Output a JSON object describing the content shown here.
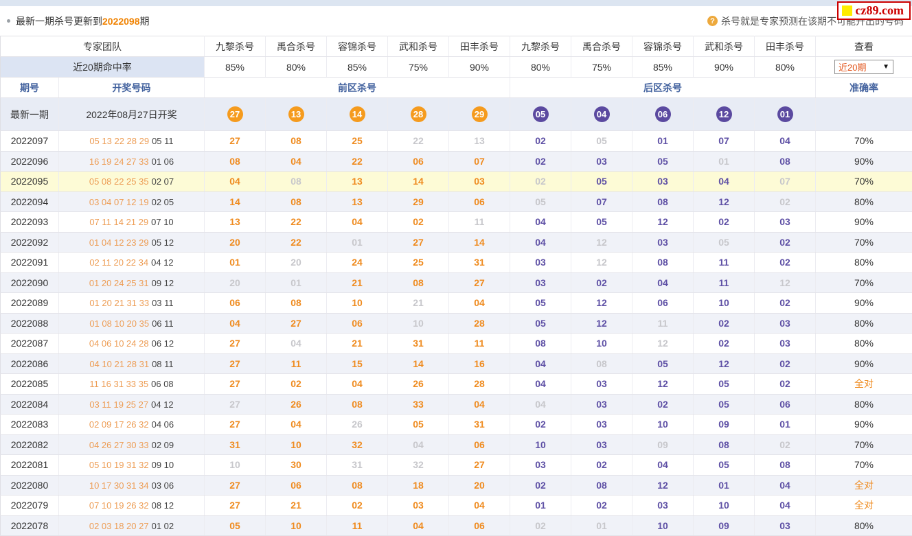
{
  "page": {
    "top_title": {
      "prefix": "最新一期杀号更新到",
      "issue": "2022098",
      "suffix": "期"
    },
    "hint": {
      "icon": "?",
      "text": "杀号就是专家预测在该期不可能开出的号码"
    },
    "logo_text": "cz89.com"
  },
  "colors": {
    "front_hit": "#ef8b1f",
    "back_hit": "#5e50a5",
    "miss": "#c7c7cb",
    "front_ball": "#f59b1e",
    "back_ball": "#5b4aa0",
    "issue_accent": "#f08200",
    "header_blue": "#44639f",
    "logo_red": "#cc0000",
    "logo_yellow": "#ffec00",
    "row_alt": "#f0f2f8",
    "row_highlight": "#fdfbd6"
  },
  "table": {
    "header": {
      "experts_label": "专家团队",
      "expert_columns": [
        "九黎杀号",
        "禹合杀号",
        "容锦杀号",
        "武和杀号",
        "田丰杀号",
        "九黎杀号",
        "禹合杀号",
        "容锦杀号",
        "武和杀号",
        "田丰杀号"
      ],
      "view_label": "查看",
      "hit_rate_label": "近20期命中率",
      "hit_rates": [
        "85%",
        "80%",
        "85%",
        "75%",
        "90%",
        "80%",
        "75%",
        "85%",
        "90%",
        "80%"
      ],
      "range_dropdown": {
        "value": "近20期",
        "arrow": "▼"
      },
      "period_label": "期号",
      "draw_label": "开奖号码",
      "front_label": "前区杀号",
      "back_label": "后区杀号",
      "accuracy_label": "准确率"
    },
    "latest": {
      "label": "最新一期",
      "date": "2022年08月27日开奖",
      "front_kills": [
        "27",
        "13",
        "14",
        "28",
        "29"
      ],
      "back_kills": [
        "05",
        "04",
        "06",
        "12",
        "01"
      ],
      "accuracy": ""
    },
    "rows": [
      {
        "period": "2022097",
        "front_draw": "05 13 22 28 29",
        "back_draw": "05 11",
        "front": [
          [
            "27",
            1
          ],
          [
            "08",
            1
          ],
          [
            "25",
            1
          ],
          [
            "22",
            0
          ],
          [
            "13",
            0
          ]
        ],
        "back": [
          [
            "02",
            1
          ],
          [
            "05",
            0
          ],
          [
            "01",
            1
          ],
          [
            "07",
            1
          ],
          [
            "04",
            1
          ]
        ],
        "accuracy": "70%",
        "highlight": false
      },
      {
        "period": "2022096",
        "front_draw": "16 19 24 27 33",
        "back_draw": "01 06",
        "front": [
          [
            "08",
            1
          ],
          [
            "04",
            1
          ],
          [
            "22",
            1
          ],
          [
            "06",
            1
          ],
          [
            "07",
            1
          ]
        ],
        "back": [
          [
            "02",
            1
          ],
          [
            "03",
            1
          ],
          [
            "05",
            1
          ],
          [
            "01",
            0
          ],
          [
            "08",
            1
          ]
        ],
        "accuracy": "90%",
        "highlight": false
      },
      {
        "period": "2022095",
        "front_draw": "05 08 22 25 35",
        "back_draw": "02 07",
        "front": [
          [
            "04",
            1
          ],
          [
            "08",
            0
          ],
          [
            "13",
            1
          ],
          [
            "14",
            1
          ],
          [
            "03",
            1
          ]
        ],
        "back": [
          [
            "02",
            0
          ],
          [
            "05",
            1
          ],
          [
            "03",
            1
          ],
          [
            "04",
            1
          ],
          [
            "07",
            0
          ]
        ],
        "accuracy": "70%",
        "highlight": true
      },
      {
        "period": "2022094",
        "front_draw": "03 04 07 12 19",
        "back_draw": "02 05",
        "front": [
          [
            "14",
            1
          ],
          [
            "08",
            1
          ],
          [
            "13",
            1
          ],
          [
            "29",
            1
          ],
          [
            "06",
            1
          ]
        ],
        "back": [
          [
            "05",
            0
          ],
          [
            "07",
            1
          ],
          [
            "08",
            1
          ],
          [
            "12",
            1
          ],
          [
            "02",
            0
          ]
        ],
        "accuracy": "80%",
        "highlight": false
      },
      {
        "period": "2022093",
        "front_draw": "07 11 14 21 29",
        "back_draw": "07 10",
        "front": [
          [
            "13",
            1
          ],
          [
            "22",
            1
          ],
          [
            "04",
            1
          ],
          [
            "02",
            1
          ],
          [
            "11",
            0
          ]
        ],
        "back": [
          [
            "04",
            1
          ],
          [
            "05",
            1
          ],
          [
            "12",
            1
          ],
          [
            "02",
            1
          ],
          [
            "03",
            1
          ]
        ],
        "accuracy": "90%",
        "highlight": false
      },
      {
        "period": "2022092",
        "front_draw": "01 04 12 23 29",
        "back_draw": "05 12",
        "front": [
          [
            "20",
            1
          ],
          [
            "22",
            1
          ],
          [
            "01",
            0
          ],
          [
            "27",
            1
          ],
          [
            "14",
            1
          ]
        ],
        "back": [
          [
            "04",
            1
          ],
          [
            "12",
            0
          ],
          [
            "03",
            1
          ],
          [
            "05",
            0
          ],
          [
            "02",
            1
          ]
        ],
        "accuracy": "70%",
        "highlight": false
      },
      {
        "period": "2022091",
        "front_draw": "02 11 20 22 34",
        "back_draw": "04 12",
        "front": [
          [
            "01",
            1
          ],
          [
            "20",
            0
          ],
          [
            "24",
            1
          ],
          [
            "25",
            1
          ],
          [
            "31",
            1
          ]
        ],
        "back": [
          [
            "03",
            1
          ],
          [
            "12",
            0
          ],
          [
            "08",
            1
          ],
          [
            "11",
            1
          ],
          [
            "02",
            1
          ]
        ],
        "accuracy": "80%",
        "highlight": false
      },
      {
        "period": "2022090",
        "front_draw": "01 20 24 25 31",
        "back_draw": "09 12",
        "front": [
          [
            "20",
            0
          ],
          [
            "01",
            0
          ],
          [
            "21",
            1
          ],
          [
            "08",
            1
          ],
          [
            "27",
            1
          ]
        ],
        "back": [
          [
            "03",
            1
          ],
          [
            "02",
            1
          ],
          [
            "04",
            1
          ],
          [
            "11",
            1
          ],
          [
            "12",
            0
          ]
        ],
        "accuracy": "70%",
        "highlight": false
      },
      {
        "period": "2022089",
        "front_draw": "01 20 21 31 33",
        "back_draw": "03 11",
        "front": [
          [
            "06",
            1
          ],
          [
            "08",
            1
          ],
          [
            "10",
            1
          ],
          [
            "21",
            0
          ],
          [
            "04",
            1
          ]
        ],
        "back": [
          [
            "05",
            1
          ],
          [
            "12",
            1
          ],
          [
            "06",
            1
          ],
          [
            "10",
            1
          ],
          [
            "02",
            1
          ]
        ],
        "accuracy": "90%",
        "highlight": false
      },
      {
        "period": "2022088",
        "front_draw": "01 08 10 20 35",
        "back_draw": "06 11",
        "front": [
          [
            "04",
            1
          ],
          [
            "27",
            1
          ],
          [
            "06",
            1
          ],
          [
            "10",
            0
          ],
          [
            "28",
            1
          ]
        ],
        "back": [
          [
            "05",
            1
          ],
          [
            "12",
            1
          ],
          [
            "11",
            0
          ],
          [
            "02",
            1
          ],
          [
            "03",
            1
          ]
        ],
        "accuracy": "80%",
        "highlight": false
      },
      {
        "period": "2022087",
        "front_draw": "04 06 10 24 28",
        "back_draw": "06 12",
        "front": [
          [
            "27",
            1
          ],
          [
            "04",
            0
          ],
          [
            "21",
            1
          ],
          [
            "31",
            1
          ],
          [
            "11",
            1
          ]
        ],
        "back": [
          [
            "08",
            1
          ],
          [
            "10",
            1
          ],
          [
            "12",
            0
          ],
          [
            "02",
            1
          ],
          [
            "03",
            1
          ]
        ],
        "accuracy": "80%",
        "highlight": false
      },
      {
        "period": "2022086",
        "front_draw": "04 10 21 28 31",
        "back_draw": "08 11",
        "front": [
          [
            "27",
            1
          ],
          [
            "11",
            1
          ],
          [
            "15",
            1
          ],
          [
            "14",
            1
          ],
          [
            "16",
            1
          ]
        ],
        "back": [
          [
            "04",
            1
          ],
          [
            "08",
            0
          ],
          [
            "05",
            1
          ],
          [
            "12",
            1
          ],
          [
            "02",
            1
          ]
        ],
        "accuracy": "90%",
        "highlight": false
      },
      {
        "period": "2022085",
        "front_draw": "11 16 31 33 35",
        "back_draw": "06 08",
        "front": [
          [
            "27",
            1
          ],
          [
            "02",
            1
          ],
          [
            "04",
            1
          ],
          [
            "26",
            1
          ],
          [
            "28",
            1
          ]
        ],
        "back": [
          [
            "04",
            1
          ],
          [
            "03",
            1
          ],
          [
            "12",
            1
          ],
          [
            "05",
            1
          ],
          [
            "02",
            1
          ]
        ],
        "accuracy": "全对",
        "highlight": false
      },
      {
        "period": "2022084",
        "front_draw": "03 11 19 25 27",
        "back_draw": "04 12",
        "front": [
          [
            "27",
            0
          ],
          [
            "26",
            1
          ],
          [
            "08",
            1
          ],
          [
            "33",
            1
          ],
          [
            "04",
            1
          ]
        ],
        "back": [
          [
            "04",
            0
          ],
          [
            "03",
            1
          ],
          [
            "02",
            1
          ],
          [
            "05",
            1
          ],
          [
            "06",
            1
          ]
        ],
        "accuracy": "80%",
        "highlight": false
      },
      {
        "period": "2022083",
        "front_draw": "02 09 17 26 32",
        "back_draw": "04 06",
        "front": [
          [
            "27",
            1
          ],
          [
            "04",
            1
          ],
          [
            "26",
            0
          ],
          [
            "05",
            1
          ],
          [
            "31",
            1
          ]
        ],
        "back": [
          [
            "02",
            1
          ],
          [
            "03",
            1
          ],
          [
            "10",
            1
          ],
          [
            "09",
            1
          ],
          [
            "01",
            1
          ]
        ],
        "accuracy": "90%",
        "highlight": false
      },
      {
        "period": "2022082",
        "front_draw": "04 26 27 30 33",
        "back_draw": "02 09",
        "front": [
          [
            "31",
            1
          ],
          [
            "10",
            1
          ],
          [
            "32",
            1
          ],
          [
            "04",
            0
          ],
          [
            "06",
            1
          ]
        ],
        "back": [
          [
            "10",
            1
          ],
          [
            "03",
            1
          ],
          [
            "09",
            0
          ],
          [
            "08",
            1
          ],
          [
            "02",
            0
          ]
        ],
        "accuracy": "70%",
        "highlight": false
      },
      {
        "period": "2022081",
        "front_draw": "05 10 19 31 32",
        "back_draw": "09 10",
        "front": [
          [
            "10",
            0
          ],
          [
            "30",
            1
          ],
          [
            "31",
            0
          ],
          [
            "32",
            0
          ],
          [
            "27",
            1
          ]
        ],
        "back": [
          [
            "03",
            1
          ],
          [
            "02",
            1
          ],
          [
            "04",
            1
          ],
          [
            "05",
            1
          ],
          [
            "08",
            1
          ]
        ],
        "accuracy": "70%",
        "highlight": false
      },
      {
        "period": "2022080",
        "front_draw": "10 17 30 31 34",
        "back_draw": "03 06",
        "front": [
          [
            "27",
            1
          ],
          [
            "06",
            1
          ],
          [
            "08",
            1
          ],
          [
            "18",
            1
          ],
          [
            "20",
            1
          ]
        ],
        "back": [
          [
            "02",
            1
          ],
          [
            "08",
            1
          ],
          [
            "12",
            1
          ],
          [
            "01",
            1
          ],
          [
            "04",
            1
          ]
        ],
        "accuracy": "全对",
        "highlight": false
      },
      {
        "period": "2022079",
        "front_draw": "07 10 19 26 32",
        "back_draw": "08 12",
        "front": [
          [
            "27",
            1
          ],
          [
            "21",
            1
          ],
          [
            "02",
            1
          ],
          [
            "03",
            1
          ],
          [
            "04",
            1
          ]
        ],
        "back": [
          [
            "01",
            1
          ],
          [
            "02",
            1
          ],
          [
            "03",
            1
          ],
          [
            "10",
            1
          ],
          [
            "04",
            1
          ]
        ],
        "accuracy": "全对",
        "highlight": false
      },
      {
        "period": "2022078",
        "front_draw": "02 03 18 20 27",
        "back_draw": "01 02",
        "front": [
          [
            "05",
            1
          ],
          [
            "10",
            1
          ],
          [
            "11",
            1
          ],
          [
            "04",
            1
          ],
          [
            "06",
            1
          ]
        ],
        "back": [
          [
            "02",
            0
          ],
          [
            "01",
            0
          ],
          [
            "10",
            1
          ],
          [
            "09",
            1
          ],
          [
            "03",
            1
          ]
        ],
        "accuracy": "80%",
        "highlight": false
      }
    ]
  }
}
